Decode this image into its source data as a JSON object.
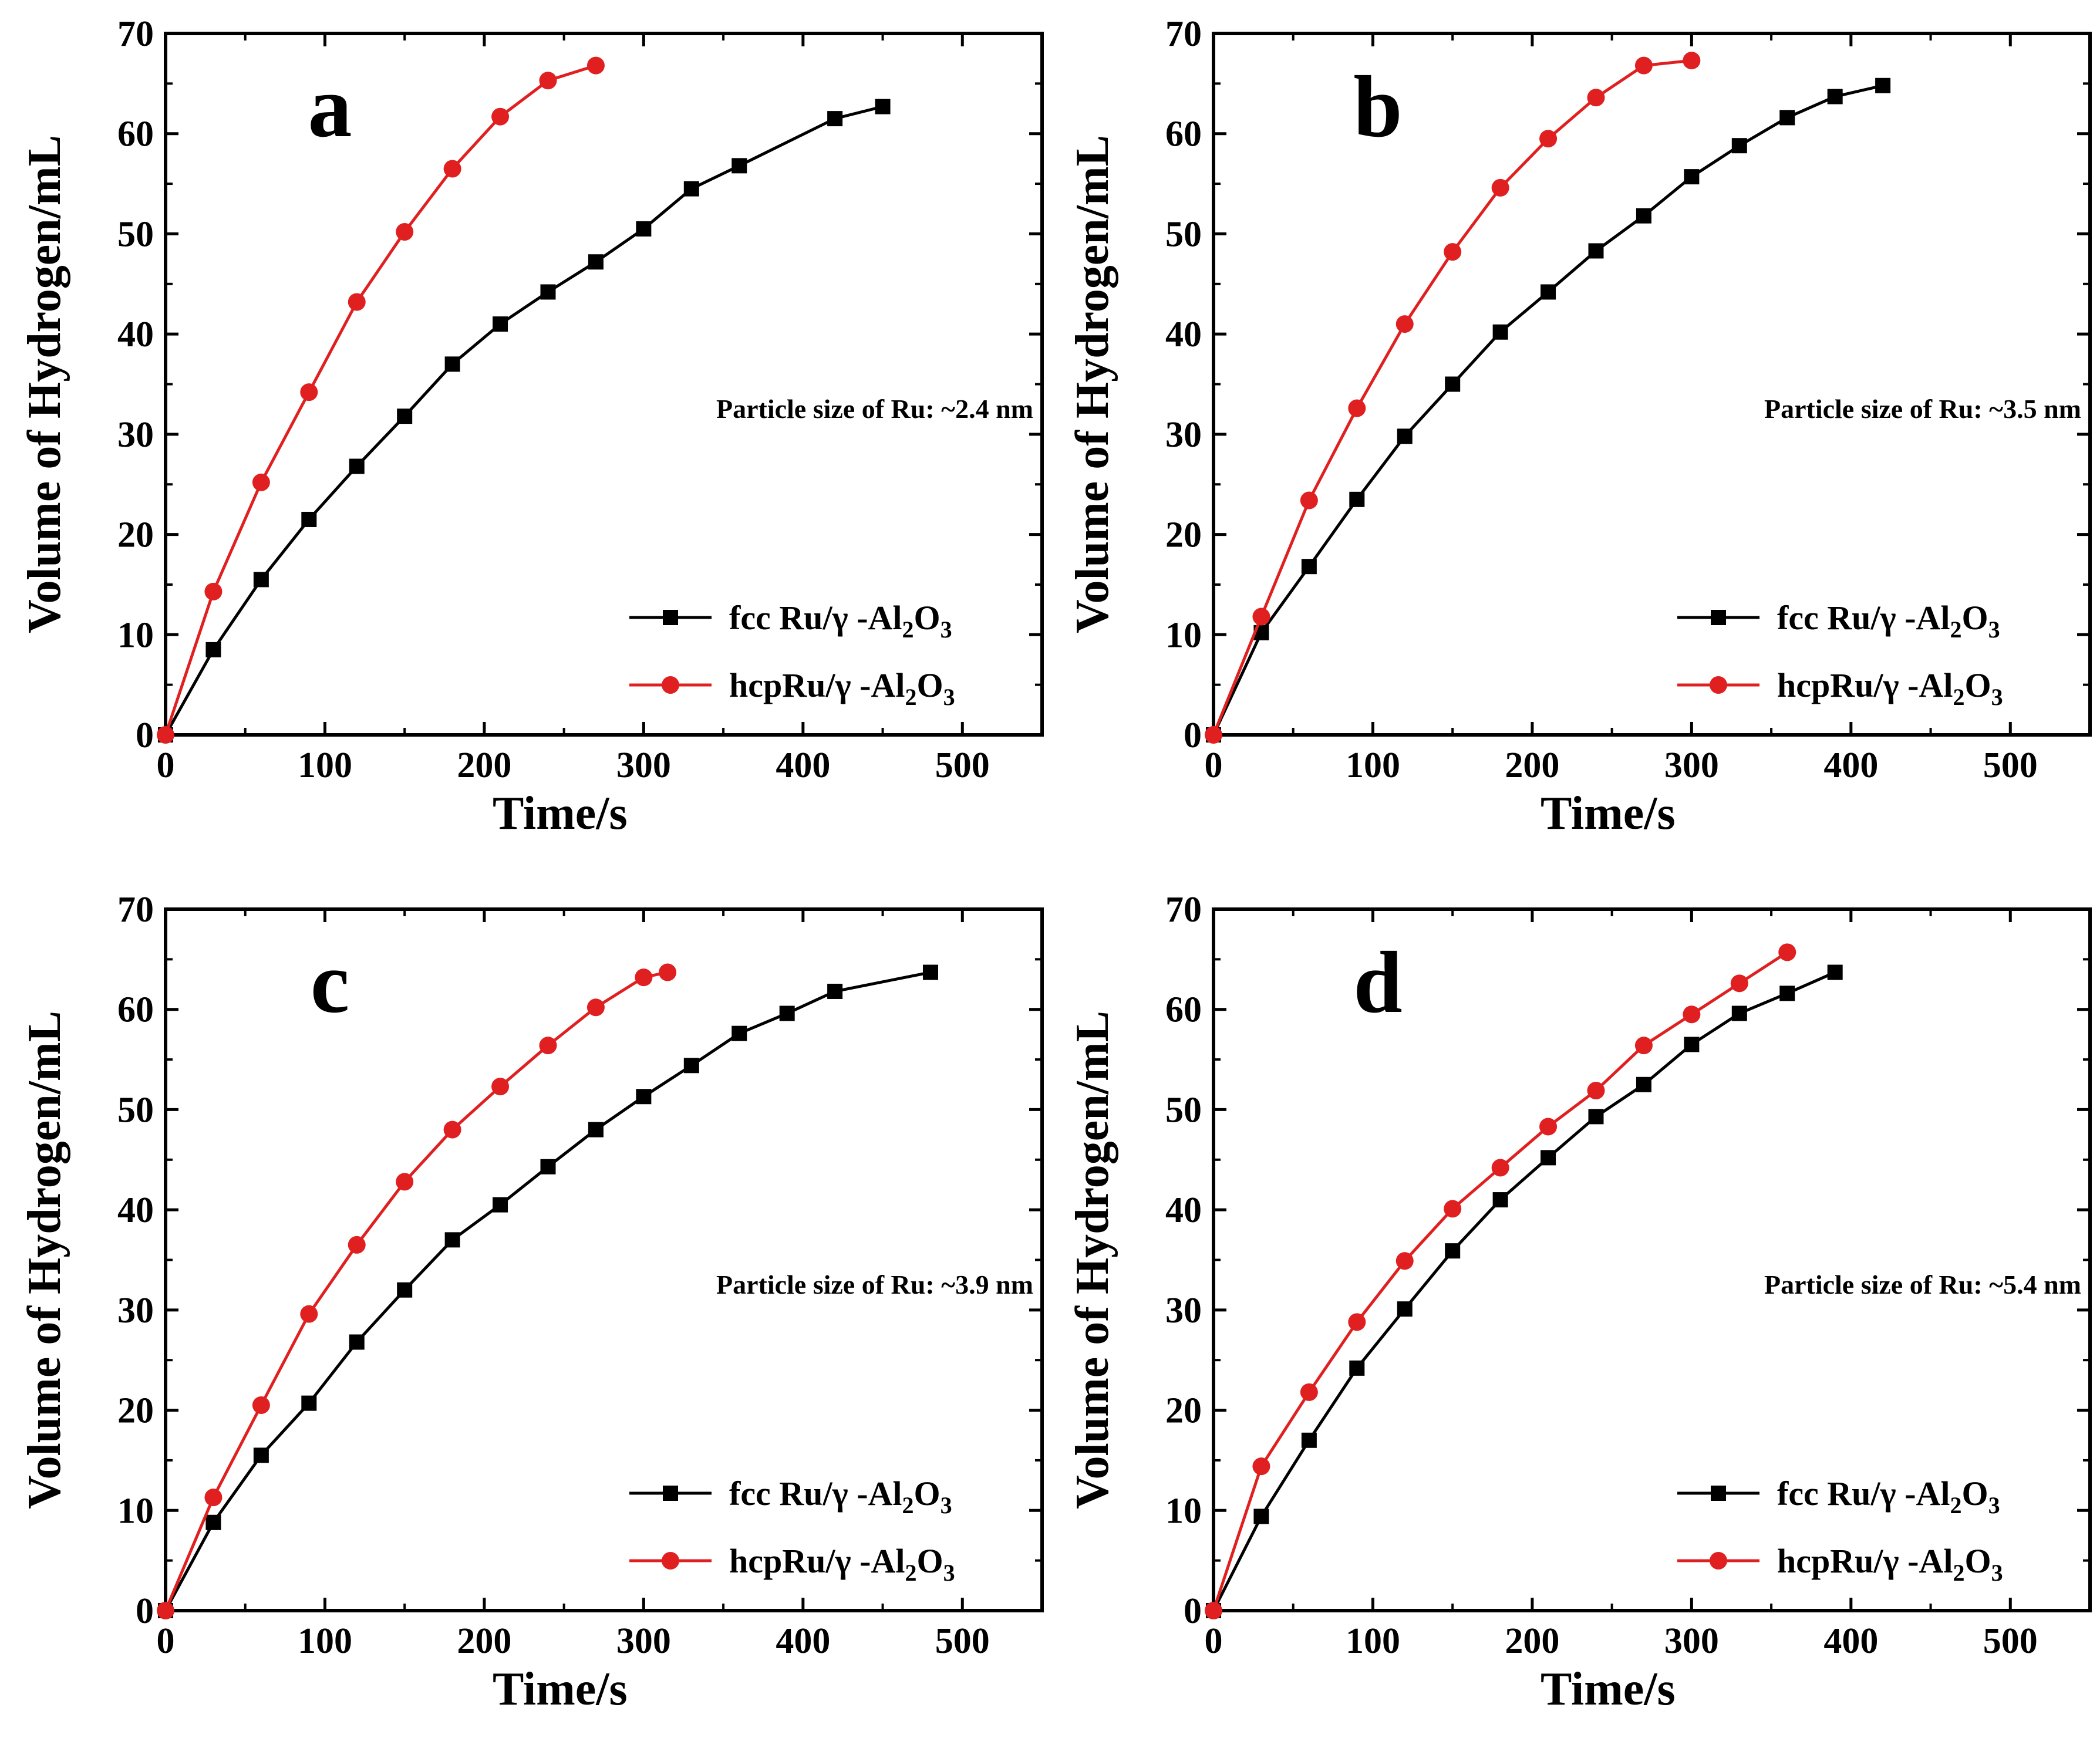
{
  "chart_data": [
    {
      "type": "line",
      "panel": "a",
      "annotation": "Particle size of Ru: ~2.4 nm",
      "xlabel": "Time/s",
      "ylabel": "Volume of Hydrogen/mL",
      "xlim": [
        0,
        550
      ],
      "ylim": [
        0,
        70
      ],
      "xticks": [
        "0",
        "100",
        "200",
        "300",
        "400",
        "500"
      ],
      "yticks": [
        "0",
        "10",
        "20",
        "30",
        "40",
        "50",
        "60",
        "70"
      ],
      "legend_position": "bottom-right",
      "series": [
        {
          "name_main": "fcc Ru/γ -Al",
          "name_sub1": "2",
          "name_mid": "O",
          "name_sub2": "3",
          "color": "#000000",
          "marker": "square",
          "x": [
            0,
            30,
            60,
            90,
            120,
            150,
            180,
            210,
            240,
            270,
            300,
            330,
            360,
            420,
            450
          ],
          "y": [
            0,
            8.5,
            15.5,
            21.5,
            26.8,
            31.8,
            37,
            41,
            44.2,
            47.2,
            50.5,
            54.5,
            56.8,
            61.5,
            62.7
          ]
        },
        {
          "name_main": "hcpRu/γ -Al",
          "name_sub1": "2",
          "name_mid": "O",
          "name_sub2": "3",
          "color": "#e02020",
          "marker": "circle",
          "x": [
            0,
            30,
            60,
            90,
            120,
            150,
            180,
            210,
            240,
            270
          ],
          "y": [
            0,
            14.3,
            25.2,
            34.2,
            43.2,
            50.2,
            56.5,
            61.7,
            65.3,
            66.8
          ]
        }
      ]
    },
    {
      "type": "line",
      "panel": "b",
      "annotation": "Particle size of Ru: ~3.5 nm",
      "xlabel": "Time/s",
      "ylabel": "Volume of Hydrogen/mL",
      "xlim": [
        0,
        550
      ],
      "ylim": [
        0,
        70
      ],
      "xticks": [
        "0",
        "100",
        "200",
        "300",
        "400",
        "500"
      ],
      "yticks": [
        "0",
        "10",
        "20",
        "30",
        "40",
        "50",
        "60",
        "70"
      ],
      "legend_position": "bottom-right",
      "series": [
        {
          "name_main": "fcc Ru/γ -Al",
          "name_sub1": "2",
          "name_mid": "O",
          "name_sub2": "3",
          "color": "#000000",
          "marker": "square",
          "x": [
            0,
            30,
            60,
            90,
            120,
            150,
            180,
            210,
            240,
            270,
            300,
            330,
            360,
            390,
            420
          ],
          "y": [
            0,
            10.2,
            16.8,
            23.5,
            29.8,
            35,
            40.2,
            44.2,
            48.3,
            51.8,
            55.7,
            58.8,
            61.6,
            63.7,
            64.8
          ]
        },
        {
          "name_main": "hcpRu/γ -Al",
          "name_sub1": "2",
          "name_mid": "O",
          "name_sub2": "3",
          "color": "#e02020",
          "marker": "circle",
          "x": [
            0,
            30,
            60,
            90,
            120,
            150,
            180,
            210,
            240,
            270,
            300
          ],
          "y": [
            0,
            11.8,
            23.4,
            32.6,
            41,
            48.2,
            54.6,
            59.5,
            63.6,
            66.8,
            67.3
          ]
        }
      ]
    },
    {
      "type": "line",
      "panel": "c",
      "annotation": "Particle size of Ru: ~3.9 nm",
      "xlabel": "Time/s",
      "ylabel": "Volume of Hydrogen/mL",
      "xlim": [
        0,
        550
      ],
      "ylim": [
        0,
        70
      ],
      "xticks": [
        "0",
        "100",
        "200",
        "300",
        "400",
        "500"
      ],
      "yticks": [
        "0",
        "10",
        "20",
        "30",
        "40",
        "50",
        "60",
        "70"
      ],
      "legend_position": "bottom-right",
      "series": [
        {
          "name_main": "fcc Ru/γ -Al",
          "name_sub1": "2",
          "name_mid": "O",
          "name_sub2": "3",
          "color": "#000000",
          "marker": "square",
          "x": [
            0,
            30,
            60,
            90,
            120,
            150,
            180,
            210,
            240,
            270,
            300,
            330,
            360,
            390,
            420,
            480
          ],
          "y": [
            0,
            8.8,
            15.5,
            20.7,
            26.8,
            32,
            37,
            40.5,
            44.3,
            48,
            51.3,
            54.4,
            57.6,
            59.6,
            61.8,
            63.7
          ]
        },
        {
          "name_main": "hcpRu/γ -Al",
          "name_sub1": "2",
          "name_mid": "O",
          "name_sub2": "3",
          "color": "#e02020",
          "marker": "circle",
          "x": [
            0,
            30,
            60,
            90,
            120,
            150,
            180,
            210,
            240,
            270,
            300,
            315
          ],
          "y": [
            0,
            11.3,
            20.5,
            29.6,
            36.5,
            42.8,
            48,
            52.3,
            56.4,
            60.2,
            63.2,
            63.7
          ]
        }
      ]
    },
    {
      "type": "line",
      "panel": "d",
      "annotation": "Particle size of Ru: ~5.4 nm",
      "xlabel": "Time/s",
      "ylabel": "Volume of Hydrogen/mL",
      "xlim": [
        0,
        550
      ],
      "ylim": [
        0,
        70
      ],
      "xticks": [
        "0",
        "100",
        "200",
        "300",
        "400",
        "500"
      ],
      "yticks": [
        "0",
        "10",
        "20",
        "30",
        "40",
        "50",
        "60",
        "70"
      ],
      "legend_position": "bottom-right",
      "series": [
        {
          "name_main": "fcc Ru/γ -Al",
          "name_sub1": "2",
          "name_mid": "O",
          "name_sub2": "3",
          "color": "#000000",
          "marker": "square",
          "x": [
            0,
            30,
            60,
            90,
            120,
            150,
            180,
            210,
            240,
            270,
            300,
            330,
            360,
            390
          ],
          "y": [
            0,
            9.4,
            17,
            24.2,
            30.1,
            35.9,
            41,
            45.2,
            49.3,
            52.5,
            56.5,
            59.6,
            61.6,
            63.7
          ]
        },
        {
          "name_main": "hcpRu/γ -Al",
          "name_sub1": "2",
          "name_mid": "O",
          "name_sub2": "3",
          "color": "#e02020",
          "marker": "circle",
          "x": [
            0,
            30,
            60,
            90,
            120,
            150,
            180,
            210,
            240,
            270,
            300,
            330,
            360
          ],
          "y": [
            0,
            14.4,
            21.8,
            28.8,
            34.9,
            40.1,
            44.2,
            48.3,
            51.9,
            56.4,
            59.5,
            62.6,
            65.7
          ]
        }
      ]
    }
  ]
}
